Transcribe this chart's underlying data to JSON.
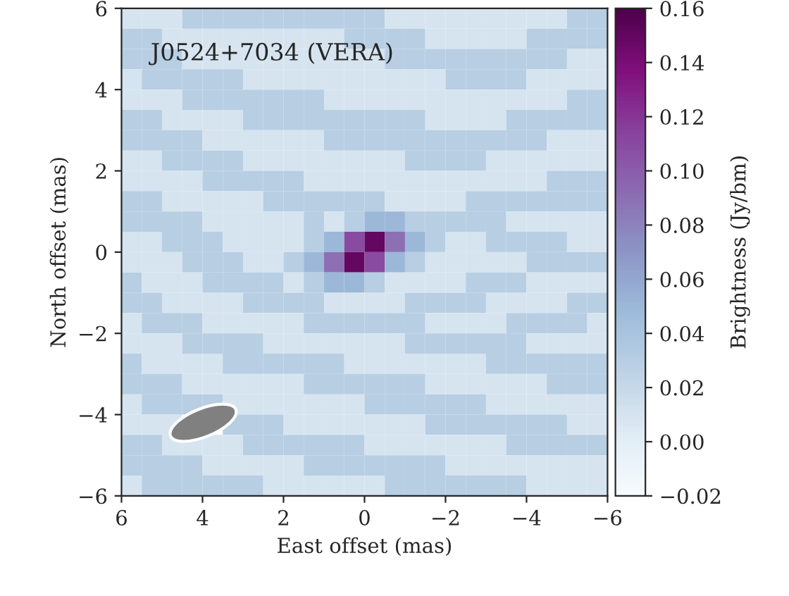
{
  "chart_data": {
    "type": "heatmap",
    "annotations": [
      "J0524+7034 (VERA)"
    ],
    "xlabel": "East offset (mas)",
    "ylabel": "North offset (mas)",
    "clabel": "Brightness (Jy/bm)",
    "xlim": [
      6,
      -6
    ],
    "ylim": [
      -6,
      6
    ],
    "xticks": [
      6,
      4,
      2,
      0,
      {
        "value": -2,
        "label": "−2"
      },
      {
        "value": -4,
        "label": "−4"
      },
      {
        "value": -6,
        "label": "−6"
      }
    ],
    "yticks": [
      {
        "value": -6,
        "label": "−6"
      },
      {
        "value": -4,
        "label": "−4"
      },
      {
        "value": -2,
        "label": "−2"
      },
      0,
      2,
      4,
      6
    ],
    "clim": [
      -0.02,
      0.16
    ],
    "cticks": [
      {
        "value": -0.02,
        "label": "−0.02"
      },
      {
        "value": 0.0,
        "label": "0.00"
      },
      {
        "value": 0.02,
        "label": "0.02"
      },
      {
        "value": 0.04,
        "label": "0.04"
      },
      {
        "value": 0.06,
        "label": "0.06"
      },
      {
        "value": 0.08,
        "label": "0.08"
      },
      {
        "value": 0.1,
        "label": "0.10"
      },
      {
        "value": 0.12,
        "label": "0.12"
      },
      {
        "value": 0.14,
        "label": "0.14"
      },
      {
        "value": 0.16,
        "label": "0.16"
      }
    ],
    "cells": [
      [
        0.01,
        0.01,
        0.01,
        0.03,
        0.03,
        0.03,
        0.03,
        0.03,
        0.03,
        0.03,
        0.03,
        0.03,
        0.03,
        0.01,
        0.01,
        0.01,
        0.01,
        0.01,
        0.01,
        0.01,
        0.01,
        0.01,
        0.03,
        0.03
      ],
      [
        0.03,
        0.03,
        0.01,
        0.01,
        0.01,
        0.01,
        0.01,
        0.01,
        0.01,
        0.01,
        0.01,
        0.03,
        0.03,
        0.03,
        0.03,
        0.01,
        0.01,
        0.01,
        0.01,
        0.01,
        0.03,
        0.03,
        0.03,
        0.03
      ],
      [
        0.03,
        0.03,
        0.03,
        0.01,
        0.01,
        0.01,
        0.01,
        0.01,
        0.01,
        0.01,
        0.01,
        0.01,
        0.01,
        0.03,
        0.03,
        0.03,
        0.03,
        0.03,
        0.03,
        0.03,
        0.03,
        0.03,
        0.01,
        0.01
      ],
      [
        0.01,
        0.03,
        0.03,
        0.03,
        0.03,
        0.03,
        0.01,
        0.01,
        0.01,
        0.01,
        0.01,
        0.01,
        0.01,
        0.01,
        0.01,
        0.01,
        0.03,
        0.03,
        0.03,
        0.03,
        0.01,
        0.01,
        0.01,
        0.01
      ],
      [
        0.01,
        0.01,
        0.01,
        0.03,
        0.03,
        0.03,
        0.03,
        0.03,
        0.03,
        0.03,
        0.01,
        0.01,
        0.01,
        0.01,
        0.01,
        0.01,
        0.01,
        0.01,
        0.01,
        0.01,
        0.01,
        0.01,
        0.03,
        0.03
      ],
      [
        0.03,
        0.03,
        0.01,
        0.01,
        0.01,
        0.01,
        0.03,
        0.03,
        0.03,
        0.03,
        0.03,
        0.03,
        0.03,
        0.03,
        0.03,
        0.01,
        0.01,
        0.01,
        0.01,
        0.03,
        0.03,
        0.03,
        0.03,
        0.03
      ],
      [
        0.03,
        0.03,
        0.03,
        0.03,
        0.01,
        0.01,
        0.01,
        0.01,
        0.01,
        0.01,
        0.03,
        0.03,
        0.03,
        0.03,
        0.03,
        0.03,
        0.03,
        0.03,
        0.03,
        0.03,
        0.03,
        0.01,
        0.01,
        0.01
      ],
      [
        0.01,
        0.01,
        0.03,
        0.03,
        0.03,
        0.03,
        0.01,
        0.01,
        0.01,
        0.01,
        0.01,
        0.01,
        0.01,
        0.01,
        0.03,
        0.03,
        0.03,
        0.03,
        0.01,
        0.01,
        0.01,
        0.01,
        0.01,
        0.01
      ],
      [
        0.01,
        0.01,
        0.01,
        0.01,
        0.03,
        0.03,
        0.03,
        0.03,
        0.03,
        0.01,
        0.01,
        0.01,
        0.01,
        0.01,
        0.01,
        0.01,
        0.01,
        0.01,
        0.01,
        0.01,
        0.01,
        0.03,
        0.03,
        0.03
      ],
      [
        0.03,
        0.03,
        0.01,
        0.01,
        0.01,
        0.01,
        0.01,
        0.03,
        0.03,
        0.03,
        0.03,
        0.03,
        0.03,
        0.01,
        0.01,
        0.01,
        0.01,
        0.03,
        0.03,
        0.03,
        0.03,
        0.03,
        0.03,
        0.03
      ],
      [
        0.03,
        0.03,
        0.03,
        0.03,
        0.01,
        0.01,
        0.01,
        0.01,
        0.01,
        0.03,
        0.01,
        0.03,
        0.05,
        0.05,
        0.03,
        0.03,
        0.03,
        0.03,
        0.03,
        0.01,
        0.01,
        0.01,
        0.01,
        0.01
      ],
      [
        0.01,
        0.01,
        0.03,
        0.03,
        0.03,
        0.01,
        0.01,
        0.01,
        0.01,
        0.03,
        0.05,
        0.11,
        0.15,
        0.09,
        0.05,
        0.03,
        0.01,
        0.01,
        0.03,
        0.03,
        0.03,
        0.03,
        0.01,
        0.01
      ],
      [
        0.01,
        0.01,
        0.01,
        0.03,
        0.03,
        0.03,
        0.01,
        0.01,
        0.03,
        0.05,
        0.09,
        0.15,
        0.11,
        0.05,
        0.03,
        0.01,
        0.01,
        0.01,
        0.01,
        0.01,
        0.03,
        0.03,
        0.03,
        0.03
      ],
      [
        0.03,
        0.01,
        0.01,
        0.01,
        0.03,
        0.03,
        0.03,
        0.03,
        0.01,
        0.03,
        0.05,
        0.05,
        0.03,
        0.01,
        0.01,
        0.01,
        0.01,
        0.03,
        0.03,
        0.03,
        0.01,
        0.01,
        0.01,
        0.01
      ],
      [
        0.03,
        0.03,
        0.01,
        0.01,
        0.01,
        0.01,
        0.03,
        0.03,
        0.03,
        0.03,
        0.01,
        0.01,
        0.01,
        0.01,
        0.03,
        0.03,
        0.03,
        0.03,
        0.01,
        0.01,
        0.01,
        0.01,
        0.03,
        0.03
      ],
      [
        0.01,
        0.03,
        0.03,
        0.03,
        0.01,
        0.01,
        0.01,
        0.01,
        0.01,
        0.03,
        0.03,
        0.03,
        0.03,
        0.03,
        0.03,
        0.01,
        0.01,
        0.01,
        0.01,
        0.03,
        0.03,
        0.03,
        0.03,
        0.01
      ],
      [
        0.01,
        0.01,
        0.01,
        0.03,
        0.03,
        0.03,
        0.03,
        0.01,
        0.01,
        0.01,
        0.01,
        0.01,
        0.01,
        0.01,
        0.03,
        0.03,
        0.03,
        0.03,
        0.03,
        0.03,
        0.01,
        0.01,
        0.01,
        0.01
      ],
      [
        0.03,
        0.01,
        0.01,
        0.01,
        0.01,
        0.03,
        0.03,
        0.03,
        0.03,
        0.03,
        0.03,
        0.01,
        0.01,
        0.01,
        0.01,
        0.01,
        0.01,
        0.01,
        0.03,
        0.03,
        0.03,
        0.03,
        0.03,
        0.03
      ],
      [
        0.03,
        0.03,
        0.03,
        0.01,
        0.01,
        0.01,
        0.01,
        0.01,
        0.01,
        0.03,
        0.03,
        0.03,
        0.03,
        0.03,
        0.03,
        0.01,
        0.01,
        0.01,
        0.01,
        0.01,
        0.01,
        0.03,
        0.03,
        0.03
      ],
      [
        0.01,
        0.03,
        0.03,
        0.03,
        0.03,
        0.01,
        0.01,
        0.01,
        0.01,
        0.01,
        0.01,
        0.01,
        0.03,
        0.03,
        0.03,
        0.03,
        0.03,
        0.03,
        0.01,
        0.01,
        0.01,
        0.01,
        0.01,
        0.01
      ],
      [
        0.01,
        0.01,
        0.01,
        null,
        null,
        0.03,
        0.03,
        0.03,
        0.01,
        0.01,
        0.01,
        0.01,
        0.01,
        0.01,
        0.01,
        0.03,
        0.03,
        0.03,
        0.03,
        0.03,
        0.03,
        0.03,
        0.01,
        0.01
      ],
      [
        0.03,
        0.03,
        0.01,
        0.01,
        0.01,
        0.01,
        0.03,
        0.03,
        0.03,
        0.03,
        0.03,
        0.03,
        0.01,
        0.01,
        0.01,
        0.01,
        0.01,
        0.01,
        0.01,
        0.03,
        0.03,
        0.03,
        0.03,
        0.03
      ],
      [
        0.03,
        0.03,
        0.03,
        0.03,
        0.01,
        0.01,
        0.01,
        0.01,
        0.01,
        0.03,
        0.03,
        0.03,
        0.03,
        0.03,
        0.03,
        0.03,
        0.01,
        0.01,
        0.01,
        0.01,
        0.01,
        0.01,
        0.01,
        0.01
      ],
      [
        0.01,
        0.03,
        0.03,
        0.03,
        0.03,
        0.03,
        0.03,
        0.01,
        0.01,
        0.01,
        0.01,
        0.01,
        0.01,
        0.03,
        0.03,
        0.03,
        0.03,
        0.03,
        0.03,
        0.03,
        0.01,
        0.01,
        0.01,
        0.01
      ]
    ]
  }
}
